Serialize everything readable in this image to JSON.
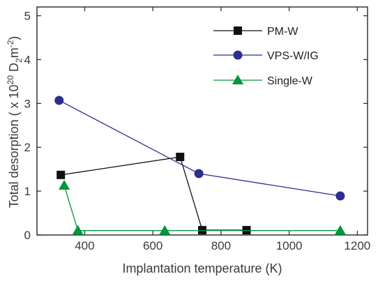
{
  "chart_data": {
    "type": "line",
    "xlabel": "Implantation temperature (K)",
    "ylabel": {
      "prefix": "Total desorption ( x 10",
      "exp1": "20",
      "mid1": " D",
      "sub": "2",
      "mid2": "m",
      "exp2": "-2",
      "suffix": ")"
    },
    "xlim": [
      260,
      1230
    ],
    "ylim": [
      0,
      5.2
    ],
    "xticks": [
      400,
      600,
      800,
      1000,
      1200
    ],
    "yticks": [
      0,
      1,
      2,
      3,
      4,
      5
    ],
    "legend_position": "top-right",
    "grid": false,
    "series": [
      {
        "name": "PM-W",
        "color": "#111111",
        "marker": "square",
        "x": [
          330,
          680,
          745,
          875
        ],
        "y": [
          1.37,
          1.78,
          0.11,
          0.11
        ]
      },
      {
        "name": "VPS-W/IG",
        "color": "#2b2f8f",
        "marker": "circle",
        "x": [
          325,
          735,
          1150
        ],
        "y": [
          3.07,
          1.4,
          0.89
        ]
      },
      {
        "name": "Single-W",
        "color": "#00963c",
        "marker": "triangle",
        "x": [
          340,
          380,
          635,
          1150
        ],
        "y": [
          1.13,
          0.1,
          0.1,
          0.1
        ]
      }
    ]
  }
}
